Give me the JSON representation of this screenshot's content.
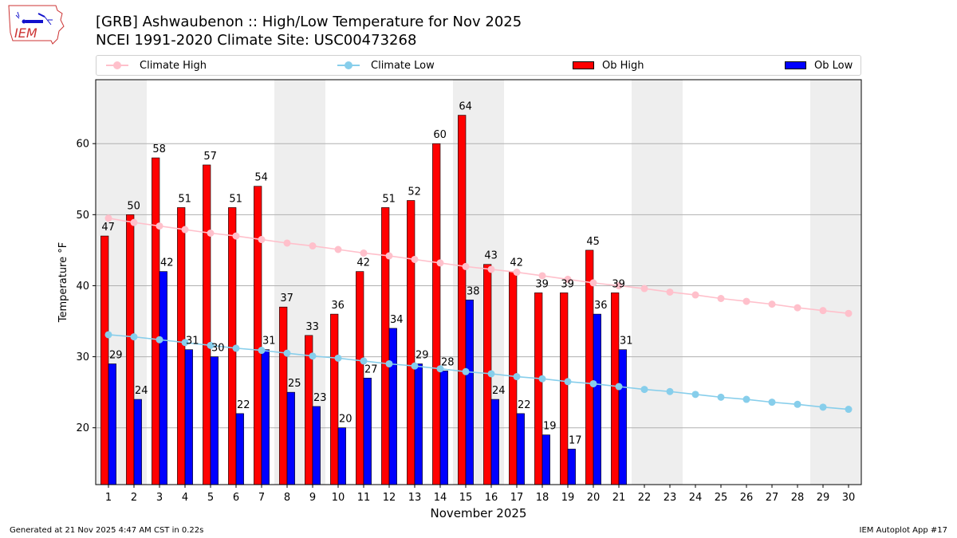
{
  "header": {
    "title_line1": "[GRB] Ashwaubenon :: High/Low Temperature for Nov 2025",
    "title_line2": "NCEI 1991-2020 Climate Site: USC00473268",
    "logo_text": "IEM"
  },
  "legend": [
    {
      "label": "Climate High",
      "kind": "line",
      "color": "#ffc0cb"
    },
    {
      "label": "Climate Low",
      "kind": "line",
      "color": "#87ceeb"
    },
    {
      "label": "Ob High",
      "kind": "box",
      "color": "#ff0000"
    },
    {
      "label": "Ob Low",
      "kind": "box",
      "color": "#0000ff"
    }
  ],
  "footer": {
    "left": "Generated at 21 Nov 2025 4:47 AM CST in 0.22s",
    "right": "IEM Autoplot App #17"
  },
  "chart_data": {
    "type": "bar",
    "xlabel": "November 2025",
    "ylabel": "Temperature °F",
    "ylim": [
      12,
      69
    ],
    "yticks": [
      20,
      30,
      40,
      50,
      60
    ],
    "grid": "horizontal",
    "legend_position": "top",
    "days": [
      1,
      2,
      3,
      4,
      5,
      6,
      7,
      8,
      9,
      10,
      11,
      12,
      13,
      14,
      15,
      16,
      17,
      18,
      19,
      20,
      21,
      22,
      23,
      24,
      25,
      26,
      27,
      28,
      29,
      30
    ],
    "weekend_shading_days": [
      1,
      2,
      8,
      9,
      15,
      16,
      22,
      23,
      29,
      30
    ],
    "series": [
      {
        "name": "Ob High",
        "type": "bar",
        "color": "#ff0000",
        "values": [
          47,
          50,
          58,
          51,
          57,
          51,
          54,
          37,
          33,
          36,
          42,
          51,
          52,
          60,
          64,
          43,
          42,
          39,
          39,
          45,
          39
        ]
      },
      {
        "name": "Ob Low",
        "type": "bar",
        "color": "#0000ff",
        "values": [
          29,
          24,
          42,
          31,
          30,
          22,
          31,
          25,
          23,
          20,
          27,
          34,
          29,
          28,
          38,
          24,
          22,
          19,
          17,
          36,
          31
        ]
      },
      {
        "name": "Climate High",
        "type": "line",
        "color": "#ffc0cb",
        "values": [
          49.5,
          48.9,
          48.4,
          47.9,
          47.4,
          47.0,
          46.5,
          46.0,
          45.6,
          45.1,
          44.6,
          44.2,
          43.7,
          43.2,
          42.7,
          42.3,
          41.9,
          41.4,
          40.9,
          40.4,
          40.0,
          39.6,
          39.1,
          38.7,
          38.2,
          37.8,
          37.4,
          36.9,
          36.5,
          36.1
        ]
      },
      {
        "name": "Climate Low",
        "type": "line",
        "color": "#87ceeb",
        "values": [
          33.1,
          32.8,
          32.4,
          32.0,
          31.6,
          31.2,
          30.9,
          30.5,
          30.1,
          29.8,
          29.4,
          29.0,
          28.7,
          28.3,
          27.9,
          27.6,
          27.2,
          26.9,
          26.5,
          26.2,
          25.8,
          25.4,
          25.1,
          24.7,
          24.3,
          24.0,
          23.6,
          23.3,
          22.9,
          22.6
        ]
      }
    ]
  }
}
